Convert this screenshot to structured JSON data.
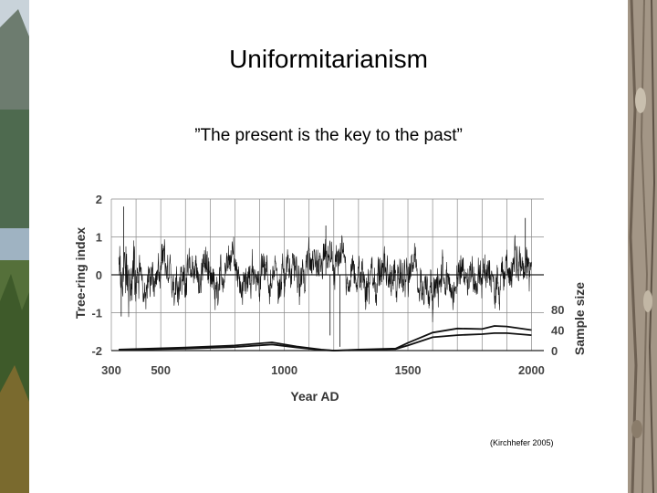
{
  "slide": {
    "title": "Uniformitarianism",
    "subtitle": "”The present is the key to the past”",
    "citation": "(Kirchhefer 2005)"
  },
  "chart_data": {
    "type": "line",
    "xlabel": "Year AD",
    "ylabel": "Tree-ring index",
    "y2label": "Sample size",
    "xlim": [
      300,
      2050
    ],
    "ylim": [
      -2,
      2
    ],
    "y2lim": [
      0,
      80
    ],
    "x_ticks": [
      300,
      500,
      1000,
      1500,
      2000
    ],
    "y_ticks": [
      -2,
      -1,
      0,
      1,
      2
    ],
    "y2_ticks": [
      0,
      40,
      80
    ],
    "grid": true,
    "series": [
      {
        "role": "tree-ring index",
        "axis": "left",
        "values_summary": "annual index fluctuating roughly between -1.3 and +1.5 around 0 from ~330 to ~2000 AD"
      },
      {
        "role": "sample size (upper curve)",
        "axis": "right",
        "x": [
          330,
          600,
          800,
          950,
          1050,
          1150,
          1200,
          1300,
          1450,
          1500,
          1600,
          1700,
          1800,
          1850,
          1900,
          2000
        ],
        "values": [
          2,
          6,
          10,
          16,
          8,
          2,
          0,
          2,
          4,
          15,
          35,
          43,
          42,
          48,
          47,
          40
        ]
      },
      {
        "role": "sample size (lower curve)",
        "axis": "right",
        "x": [
          330,
          600,
          800,
          950,
          1050,
          1150,
          1200,
          1300,
          1450,
          1500,
          1600,
          1700,
          1800,
          1850,
          1900,
          2000
        ],
        "values": [
          1,
          4,
          7,
          12,
          6,
          1,
          0,
          1,
          3,
          10,
          26,
          30,
          32,
          34,
          34,
          30
        ]
      }
    ]
  }
}
